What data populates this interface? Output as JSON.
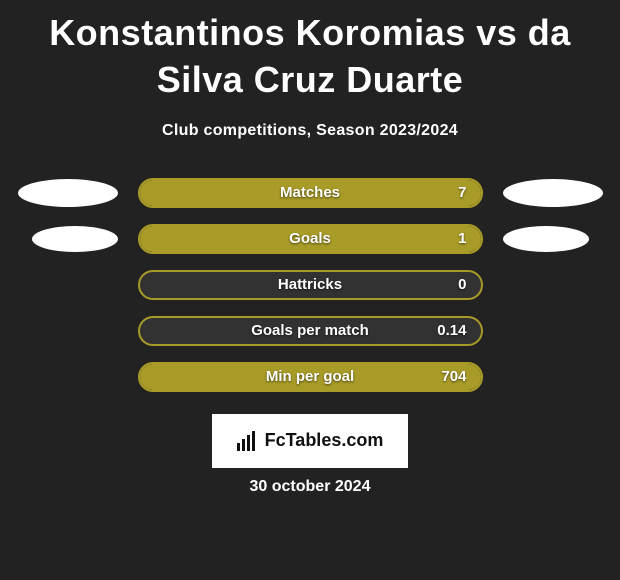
{
  "colors": {
    "background": "#222222",
    "fill": "#a89b28",
    "pill_border": "#a89b28",
    "pill_bg_empty": "#323232",
    "text": "#ffffff",
    "badge_bg": "#ffffff",
    "badge_text": "#111111"
  },
  "typography": {
    "title_fontsize": 36,
    "subtitle_fontsize": 16,
    "stat_label_fontsize": 15,
    "date_fontsize": 16
  },
  "title": "Konstantinos Koromias vs da Silva Cruz Duarte",
  "subtitle": "Club competitions, Season 2023/2024",
  "stats": [
    {
      "label": "Matches",
      "value": "7",
      "fill_pct": 100,
      "left_oval": true,
      "right_oval": true,
      "oval_small": false
    },
    {
      "label": "Goals",
      "value": "1",
      "fill_pct": 100,
      "left_oval": true,
      "right_oval": true,
      "oval_small": true
    },
    {
      "label": "Hattricks",
      "value": "0",
      "fill_pct": 0,
      "left_oval": false,
      "right_oval": false,
      "oval_small": false
    },
    {
      "label": "Goals per match",
      "value": "0.14",
      "fill_pct": 0,
      "left_oval": false,
      "right_oval": false,
      "oval_small": false
    },
    {
      "label": "Min per goal",
      "value": "704",
      "fill_pct": 100,
      "left_oval": false,
      "right_oval": false,
      "oval_small": false
    }
  ],
  "badge": {
    "text": "FcTables.com"
  },
  "date": "30 october 2024"
}
